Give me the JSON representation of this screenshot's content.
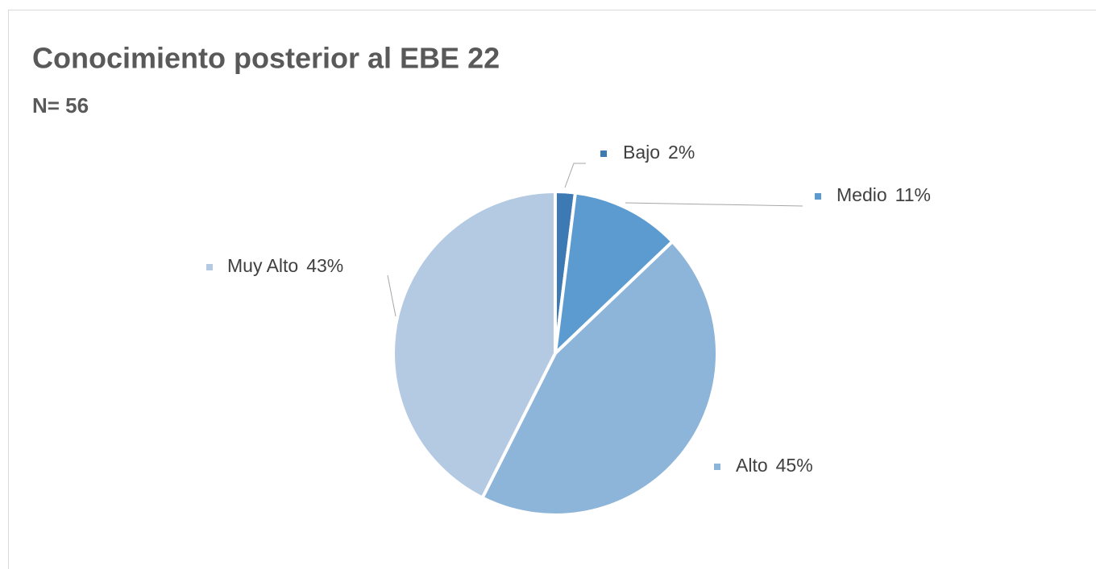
{
  "chart_data": {
    "type": "pie",
    "title": "Conocimiento posterior al EBE 22",
    "subtitle": "N= 56",
    "categories": [
      "Bajo",
      "Medio",
      "Alto",
      "Muy Alto"
    ],
    "values": [
      2,
      11,
      45,
      43
    ],
    "value_labels": [
      "2%",
      "11%",
      "45%",
      "43%"
    ],
    "colors": [
      "#3d7ab3",
      "#5b9bd0",
      "#8db4d9",
      "#b4c9e2"
    ]
  }
}
